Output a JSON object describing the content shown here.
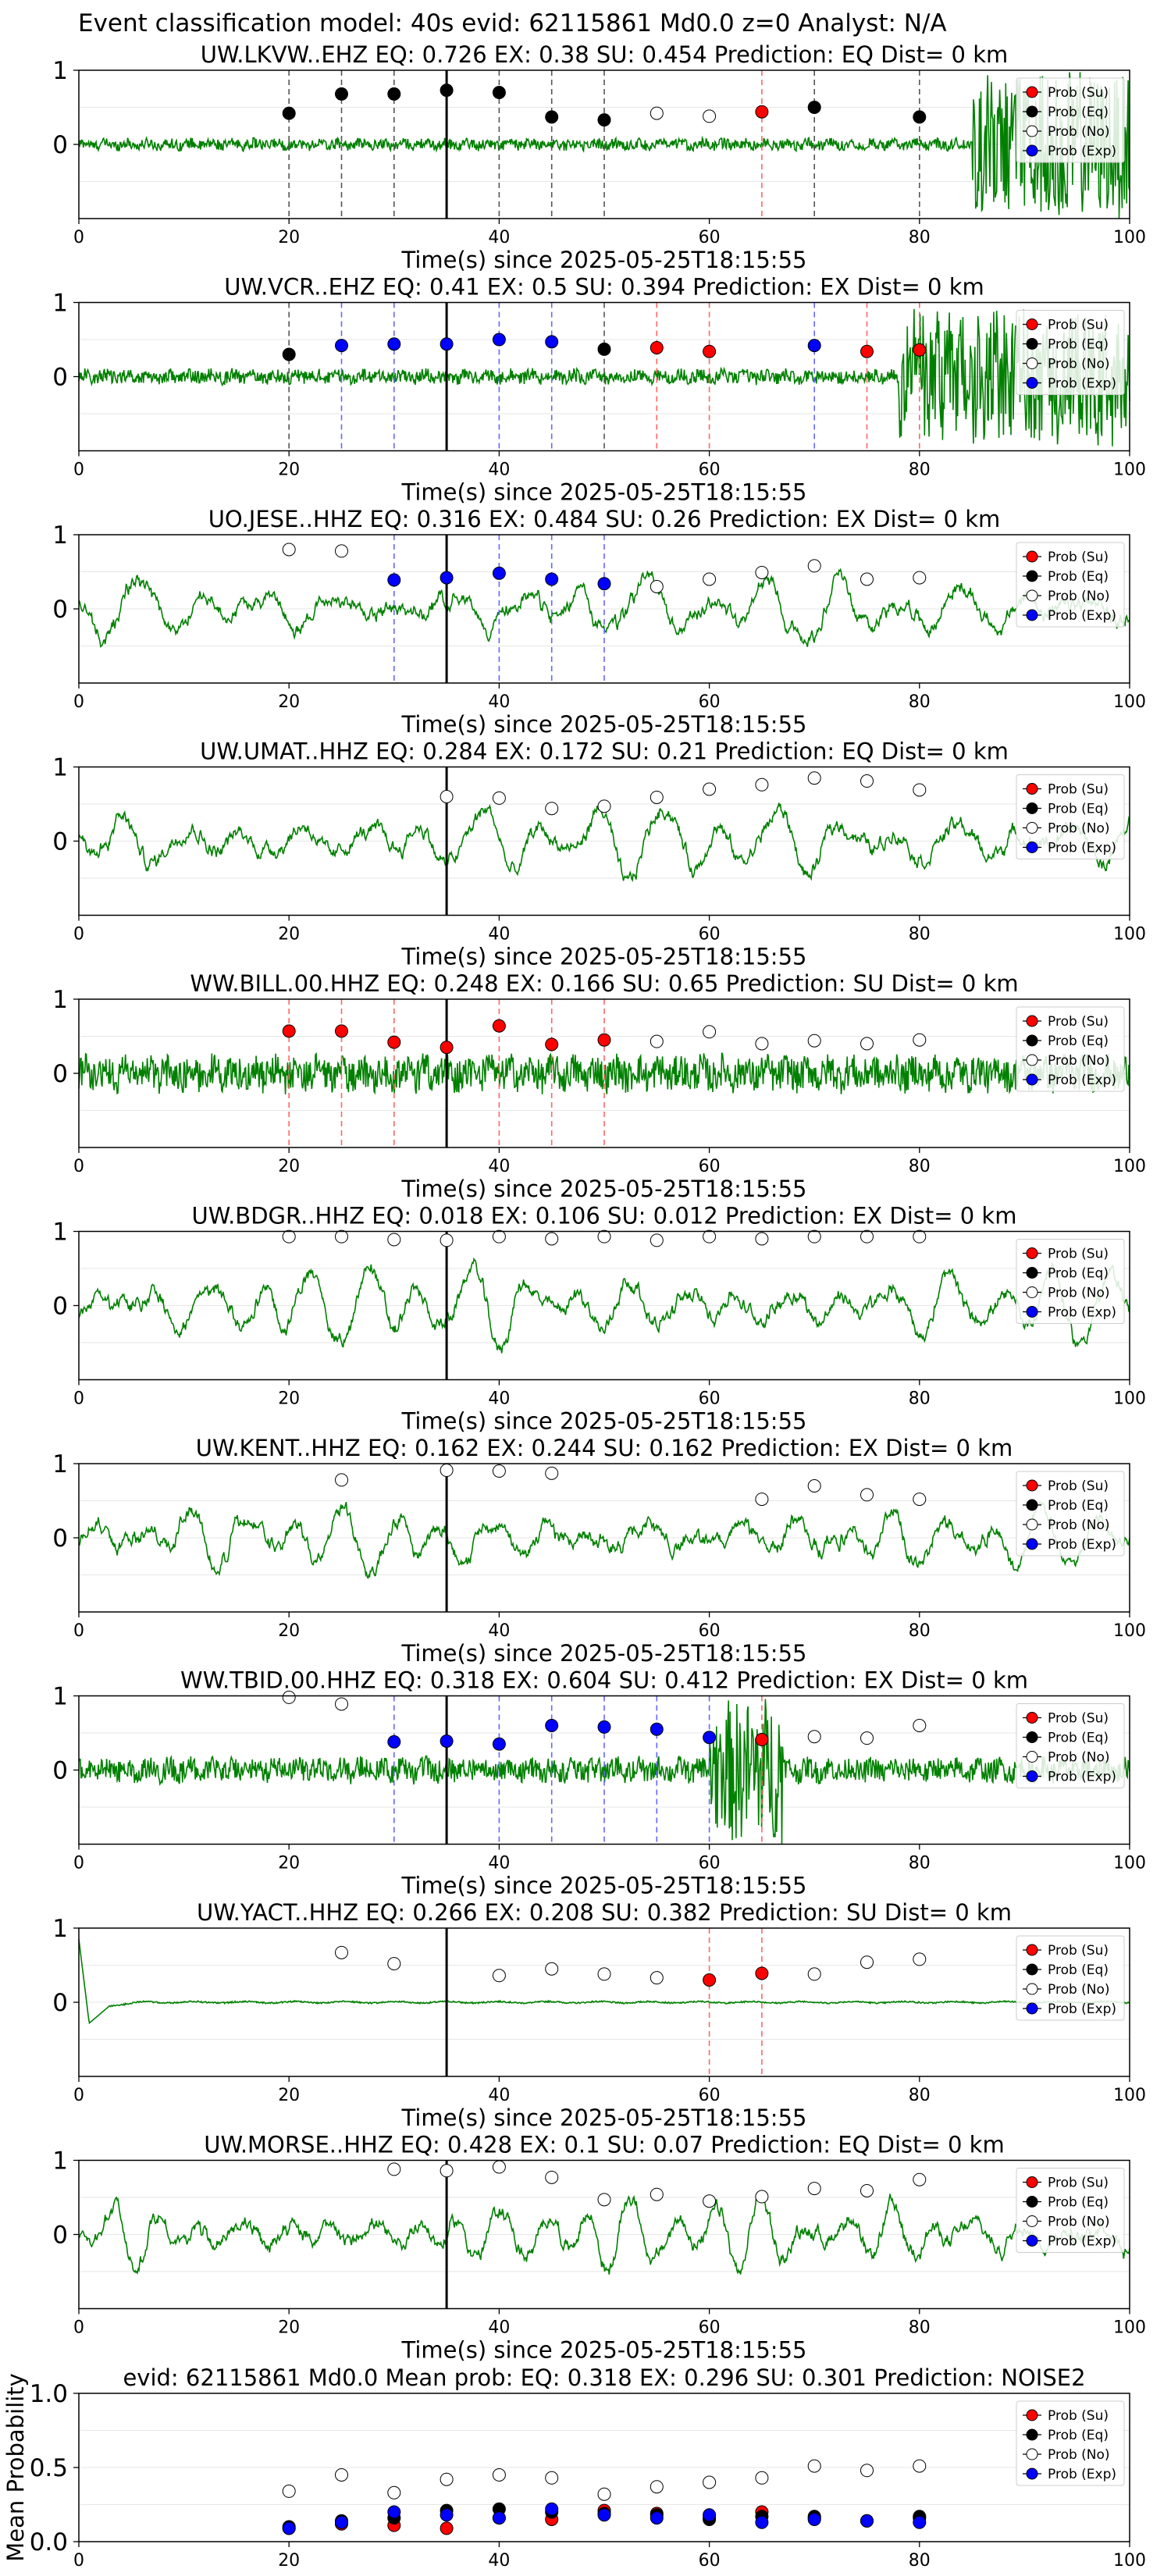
{
  "figure_title": "Event classification model: 40s evid: 62115861 Md0.0 z=0 Analyst: N/A",
  "legend_labels": [
    "Prob (Su)",
    "Prob (Eq)",
    "Prob (No)",
    "Prob (Exp)"
  ],
  "colors": {
    "su": "#ff0000",
    "eq": "#000000",
    "no": "#ffffff",
    "exp": "#0000ff",
    "waveform": "#008000",
    "su_line": "#ff6666",
    "eq_line": "#555555",
    "exp_line": "#6666ff"
  },
  "chart_data": [
    {
      "type": "line",
      "station": "UW.LKVW..EHZ",
      "title": "UW.LKVW..EHZ   EQ: 0.726  EX: 0.38  SU: 0.454   Prediction: EQ    Dist= 0 km",
      "xlabel": "Time(s) since 2025-05-25T18:15:55",
      "xlim": [
        0,
        100
      ],
      "ylim": [
        -1,
        1
      ],
      "xticks": [
        "0",
        "20",
        "40",
        "60",
        "80",
        "100"
      ],
      "yticks": [
        "1",
        "0"
      ],
      "origin_time_line": 35,
      "waveform": {
        "kind": "noisy",
        "amp": 0.07,
        "burst_start": 85,
        "burst_amp": 0.95
      },
      "points": [
        {
          "x": 20,
          "y": 0.42,
          "cls": "eq"
        },
        {
          "x": 25,
          "y": 0.68,
          "cls": "eq"
        },
        {
          "x": 30,
          "y": 0.68,
          "cls": "eq"
        },
        {
          "x": 35,
          "y": 0.73,
          "cls": "eq"
        },
        {
          "x": 40,
          "y": 0.7,
          "cls": "eq"
        },
        {
          "x": 45,
          "y": 0.37,
          "cls": "eq"
        },
        {
          "x": 50,
          "y": 0.33,
          "cls": "eq"
        },
        {
          "x": 55,
          "y": 0.42,
          "cls": "no"
        },
        {
          "x": 60,
          "y": 0.38,
          "cls": "no"
        },
        {
          "x": 65,
          "y": 0.44,
          "cls": "su"
        },
        {
          "x": 70,
          "y": 0.5,
          "cls": "eq"
        },
        {
          "x": 80,
          "y": 0.37,
          "cls": "eq"
        }
      ]
    },
    {
      "type": "line",
      "station": "UW.VCR..EHZ",
      "title": "UW.VCR..EHZ   EQ: 0.41  EX: 0.5  SU: 0.394   Prediction: EX    Dist= 0 km",
      "xlabel": "Time(s) since 2025-05-25T18:15:55",
      "xlim": [
        0,
        100
      ],
      "ylim": [
        -1,
        1
      ],
      "xticks": [
        "0",
        "20",
        "40",
        "60",
        "80",
        "100"
      ],
      "yticks": [
        "1",
        "0"
      ],
      "origin_time_line": 35,
      "waveform": {
        "kind": "noisy",
        "amp": 0.09,
        "burst_start": 78,
        "burst_amp": 0.85
      },
      "points": [
        {
          "x": 20,
          "y": 0.3,
          "cls": "eq"
        },
        {
          "x": 25,
          "y": 0.42,
          "cls": "exp"
        },
        {
          "x": 30,
          "y": 0.44,
          "cls": "exp"
        },
        {
          "x": 35,
          "y": 0.44,
          "cls": "exp"
        },
        {
          "x": 40,
          "y": 0.5,
          "cls": "exp"
        },
        {
          "x": 45,
          "y": 0.47,
          "cls": "exp"
        },
        {
          "x": 50,
          "y": 0.37,
          "cls": "eq"
        },
        {
          "x": 55,
          "y": 0.39,
          "cls": "su"
        },
        {
          "x": 60,
          "y": 0.34,
          "cls": "su"
        },
        {
          "x": 70,
          "y": 0.42,
          "cls": "exp"
        },
        {
          "x": 75,
          "y": 0.34,
          "cls": "su"
        },
        {
          "x": 80,
          "y": 0.36,
          "cls": "su"
        }
      ]
    },
    {
      "type": "line",
      "station": "UO.JESE..HHZ",
      "title": "UO.JESE..HHZ   EQ: 0.316  EX: 0.484  SU: 0.26   Prediction: EX    Dist= 0 km",
      "xlabel": "Time(s) since 2025-05-25T18:15:55",
      "xlim": [
        0,
        100
      ],
      "ylim": [
        -1,
        1
      ],
      "xticks": [
        "0",
        "20",
        "40",
        "60",
        "80",
        "100"
      ],
      "yticks": [
        "1",
        "0"
      ],
      "origin_time_line": 35,
      "waveform": {
        "kind": "wavy",
        "amp": 0.45
      },
      "points": [
        {
          "x": 20,
          "y": 0.8,
          "cls": "no"
        },
        {
          "x": 25,
          "y": 0.78,
          "cls": "no"
        },
        {
          "x": 30,
          "y": 0.39,
          "cls": "exp"
        },
        {
          "x": 35,
          "y": 0.42,
          "cls": "exp"
        },
        {
          "x": 40,
          "y": 0.48,
          "cls": "exp"
        },
        {
          "x": 45,
          "y": 0.4,
          "cls": "exp"
        },
        {
          "x": 50,
          "y": 0.34,
          "cls": "exp"
        },
        {
          "x": 55,
          "y": 0.3,
          "cls": "no"
        },
        {
          "x": 60,
          "y": 0.4,
          "cls": "no"
        },
        {
          "x": 65,
          "y": 0.49,
          "cls": "no"
        },
        {
          "x": 70,
          "y": 0.58,
          "cls": "no"
        },
        {
          "x": 75,
          "y": 0.4,
          "cls": "no"
        },
        {
          "x": 80,
          "y": 0.42,
          "cls": "no"
        }
      ]
    },
    {
      "type": "line",
      "station": "UW.UMAT..HHZ",
      "title": "UW.UMAT..HHZ   EQ: 0.284  EX: 0.172  SU: 0.21   Prediction: EQ    Dist= 0 km",
      "xlabel": "Time(s) since 2025-05-25T18:15:55",
      "xlim": [
        0,
        100
      ],
      "ylim": [
        -1,
        1
      ],
      "xticks": [
        "0",
        "20",
        "40",
        "60",
        "80",
        "100"
      ],
      "yticks": [
        "1",
        "0"
      ],
      "origin_time_line": 35,
      "waveform": {
        "kind": "wavy",
        "amp": 0.55
      },
      "points": [
        {
          "x": 35,
          "y": 0.6,
          "cls": "no"
        },
        {
          "x": 40,
          "y": 0.58,
          "cls": "no"
        },
        {
          "x": 45,
          "y": 0.44,
          "cls": "no"
        },
        {
          "x": 50,
          "y": 0.47,
          "cls": "no"
        },
        {
          "x": 55,
          "y": 0.59,
          "cls": "no"
        },
        {
          "x": 60,
          "y": 0.7,
          "cls": "no"
        },
        {
          "x": 65,
          "y": 0.76,
          "cls": "no"
        },
        {
          "x": 70,
          "y": 0.85,
          "cls": "no"
        },
        {
          "x": 75,
          "y": 0.81,
          "cls": "no"
        },
        {
          "x": 80,
          "y": 0.69,
          "cls": "no"
        }
      ]
    },
    {
      "type": "line",
      "station": "WW.BILL.00.HHZ",
      "title": "WW.BILL.00.HHZ   EQ: 0.248  EX: 0.166  SU: 0.65   Prediction: SU    Dist= 0 km",
      "xlabel": "Time(s) since 2025-05-25T18:15:55",
      "xlim": [
        0,
        100
      ],
      "ylim": [
        -1,
        1
      ],
      "xticks": [
        "0",
        "20",
        "40",
        "60",
        "80",
        "100"
      ],
      "yticks": [
        "1",
        "0"
      ],
      "origin_time_line": 35,
      "waveform": {
        "kind": "noisy",
        "amp": 0.22,
        "burst_start": 101,
        "burst_amp": 0.3
      },
      "points": [
        {
          "x": 20,
          "y": 0.57,
          "cls": "su"
        },
        {
          "x": 25,
          "y": 0.57,
          "cls": "su"
        },
        {
          "x": 30,
          "y": 0.42,
          "cls": "su"
        },
        {
          "x": 35,
          "y": 0.35,
          "cls": "su"
        },
        {
          "x": 40,
          "y": 0.64,
          "cls": "su"
        },
        {
          "x": 45,
          "y": 0.39,
          "cls": "su"
        },
        {
          "x": 50,
          "y": 0.45,
          "cls": "su"
        },
        {
          "x": 55,
          "y": 0.43,
          "cls": "no"
        },
        {
          "x": 60,
          "y": 0.56,
          "cls": "no"
        },
        {
          "x": 65,
          "y": 0.4,
          "cls": "no"
        },
        {
          "x": 70,
          "y": 0.44,
          "cls": "no"
        },
        {
          "x": 75,
          "y": 0.4,
          "cls": "no"
        },
        {
          "x": 80,
          "y": 0.45,
          "cls": "no"
        }
      ]
    },
    {
      "type": "line",
      "station": "UW.BDGR..HHZ",
      "title": "UW.BDGR..HHZ   EQ: 0.018  EX: 0.106  SU: 0.012   Prediction: EX    Dist= 0 km",
      "xlabel": "Time(s) since 2025-05-25T18:15:55",
      "xlim": [
        0,
        100
      ],
      "ylim": [
        -1,
        1
      ],
      "xticks": [
        "0",
        "20",
        "40",
        "60",
        "80",
        "100"
      ],
      "yticks": [
        "1",
        "0"
      ],
      "origin_time_line": 35,
      "waveform": {
        "kind": "wavy",
        "amp": 0.55
      },
      "points": [
        {
          "x": 20,
          "y": 0.93,
          "cls": "no"
        },
        {
          "x": 25,
          "y": 0.93,
          "cls": "no"
        },
        {
          "x": 30,
          "y": 0.89,
          "cls": "no"
        },
        {
          "x": 35,
          "y": 0.88,
          "cls": "no"
        },
        {
          "x": 40,
          "y": 0.93,
          "cls": "no"
        },
        {
          "x": 45,
          "y": 0.9,
          "cls": "no"
        },
        {
          "x": 50,
          "y": 0.93,
          "cls": "no"
        },
        {
          "x": 55,
          "y": 0.88,
          "cls": "no"
        },
        {
          "x": 60,
          "y": 0.93,
          "cls": "no"
        },
        {
          "x": 65,
          "y": 0.9,
          "cls": "no"
        },
        {
          "x": 70,
          "y": 0.93,
          "cls": "no"
        },
        {
          "x": 75,
          "y": 0.93,
          "cls": "no"
        },
        {
          "x": 80,
          "y": 0.93,
          "cls": "no"
        }
      ]
    },
    {
      "type": "line",
      "station": "UW.KENT..HHZ",
      "title": "UW.KENT..HHZ   EQ: 0.162  EX: 0.244  SU: 0.162   Prediction: EX    Dist= 0 km",
      "xlabel": "Time(s) since 2025-05-25T18:15:55",
      "xlim": [
        0,
        100
      ],
      "ylim": [
        -1,
        1
      ],
      "xticks": [
        "0",
        "20",
        "40",
        "60",
        "80",
        "100"
      ],
      "yticks": [
        "1",
        "0"
      ],
      "origin_time_line": 35,
      "waveform": {
        "kind": "wavy",
        "amp": 0.4
      },
      "points": [
        {
          "x": 25,
          "y": 0.78,
          "cls": "no"
        },
        {
          "x": 35,
          "y": 0.91,
          "cls": "no"
        },
        {
          "x": 40,
          "y": 0.9,
          "cls": "no"
        },
        {
          "x": 45,
          "y": 0.87,
          "cls": "no"
        },
        {
          "x": 65,
          "y": 0.52,
          "cls": "no"
        },
        {
          "x": 70,
          "y": 0.7,
          "cls": "no"
        },
        {
          "x": 75,
          "y": 0.58,
          "cls": "no"
        },
        {
          "x": 80,
          "y": 0.52,
          "cls": "no"
        }
      ]
    },
    {
      "type": "line",
      "station": "WW.TBID.00.HHZ",
      "title": "WW.TBID.00.HHZ   EQ: 0.318  EX: 0.604  SU: 0.412   Prediction: EX    Dist= 0 km",
      "xlabel": "Time(s) since 2025-05-25T18:15:55",
      "xlim": [
        0,
        100
      ],
      "ylim": [
        -1,
        1
      ],
      "xticks": [
        "0",
        "20",
        "40",
        "60",
        "80",
        "100"
      ],
      "yticks": [
        "1",
        "0"
      ],
      "origin_time_line": 35,
      "waveform": {
        "kind": "noisy",
        "amp": 0.15,
        "burst_start": 60,
        "burst_end": 67,
        "burst_amp": 0.95
      },
      "points": [
        {
          "x": 20,
          "y": 0.98,
          "cls": "no"
        },
        {
          "x": 25,
          "y": 0.89,
          "cls": "no"
        },
        {
          "x": 30,
          "y": 0.38,
          "cls": "exp"
        },
        {
          "x": 35,
          "y": 0.39,
          "cls": "exp"
        },
        {
          "x": 40,
          "y": 0.35,
          "cls": "exp"
        },
        {
          "x": 45,
          "y": 0.6,
          "cls": "exp"
        },
        {
          "x": 50,
          "y": 0.58,
          "cls": "exp"
        },
        {
          "x": 55,
          "y": 0.55,
          "cls": "exp"
        },
        {
          "x": 60,
          "y": 0.44,
          "cls": "exp"
        },
        {
          "x": 65,
          "y": 0.41,
          "cls": "su"
        },
        {
          "x": 70,
          "y": 0.45,
          "cls": "no"
        },
        {
          "x": 75,
          "y": 0.43,
          "cls": "no"
        },
        {
          "x": 80,
          "y": 0.6,
          "cls": "no"
        }
      ]
    },
    {
      "type": "line",
      "station": "UW.YACT..HHZ",
      "title": "UW.YACT..HHZ   EQ: 0.266  EX: 0.208  SU: 0.382   Prediction: SU    Dist= 0 km",
      "xlabel": "Time(s) since 2025-05-25T18:15:55",
      "xlim": [
        0,
        100
      ],
      "ylim": [
        -1,
        1
      ],
      "xticks": [
        "0",
        "20",
        "40",
        "60",
        "80",
        "100"
      ],
      "yticks": [
        "1",
        "0"
      ],
      "origin_time_line": 35,
      "waveform": {
        "kind": "flat",
        "amp": 0.02
      },
      "points": [
        {
          "x": 25,
          "y": 0.67,
          "cls": "no"
        },
        {
          "x": 30,
          "y": 0.52,
          "cls": "no"
        },
        {
          "x": 40,
          "y": 0.36,
          "cls": "no"
        },
        {
          "x": 45,
          "y": 0.45,
          "cls": "no"
        },
        {
          "x": 50,
          "y": 0.38,
          "cls": "no"
        },
        {
          "x": 55,
          "y": 0.33,
          "cls": "no"
        },
        {
          "x": 60,
          "y": 0.3,
          "cls": "su"
        },
        {
          "x": 65,
          "y": 0.39,
          "cls": "su"
        },
        {
          "x": 70,
          "y": 0.38,
          "cls": "no"
        },
        {
          "x": 75,
          "y": 0.54,
          "cls": "no"
        },
        {
          "x": 80,
          "y": 0.58,
          "cls": "no"
        }
      ]
    },
    {
      "type": "line",
      "station": "UW.MORSE..HHZ",
      "title": "UW.MORSE..HHZ   EQ: 0.428  EX: 0.1  SU: 0.07   Prediction: EQ    Dist= 0 km",
      "xlabel": "Time(s) since 2025-05-25T18:15:55",
      "xlim": [
        0,
        100
      ],
      "ylim": [
        -1,
        1
      ],
      "xticks": [
        "0",
        "20",
        "40",
        "60",
        "80",
        "100"
      ],
      "yticks": [
        "1",
        "0"
      ],
      "origin_time_line": 35,
      "waveform": {
        "kind": "wavy",
        "amp": 0.5
      },
      "points": [
        {
          "x": 30,
          "y": 0.88,
          "cls": "no"
        },
        {
          "x": 35,
          "y": 0.86,
          "cls": "no"
        },
        {
          "x": 40,
          "y": 0.91,
          "cls": "no"
        },
        {
          "x": 45,
          "y": 0.77,
          "cls": "no"
        },
        {
          "x": 50,
          "y": 0.47,
          "cls": "no"
        },
        {
          "x": 55,
          "y": 0.54,
          "cls": "no"
        },
        {
          "x": 60,
          "y": 0.45,
          "cls": "no"
        },
        {
          "x": 65,
          "y": 0.51,
          "cls": "no"
        },
        {
          "x": 70,
          "y": 0.62,
          "cls": "no"
        },
        {
          "x": 75,
          "y": 0.59,
          "cls": "no"
        },
        {
          "x": 80,
          "y": 0.74,
          "cls": "no"
        }
      ]
    },
    {
      "type": "scatter",
      "station": "mean",
      "title": "evid: 62115861  Md0.0   Mean prob:   EQ: 0.318  EX: 0.296  SU: 0.301   Prediction: NOISE2",
      "ylabel": "Mean Probability",
      "xlim": [
        0,
        100
      ],
      "ylim": [
        0,
        1
      ],
      "xticks": [
        "0",
        "20",
        "40",
        "60",
        "80",
        "100"
      ],
      "yticks": [
        "1.0",
        "0.5",
        "0.0"
      ],
      "x": [
        20,
        25,
        30,
        35,
        40,
        45,
        50,
        55,
        60,
        65,
        70,
        75,
        80
      ],
      "series": [
        {
          "cls": "no",
          "values": [
            0.34,
            0.45,
            0.33,
            0.42,
            0.45,
            0.43,
            0.32,
            0.37,
            0.4,
            0.43,
            0.51,
            0.48,
            0.51
          ]
        },
        {
          "cls": "su",
          "values": [
            0.09,
            0.12,
            0.11,
            0.09,
            0.16,
            0.15,
            0.21,
            0.19,
            0.16,
            0.2,
            0.16,
            0.14,
            0.16
          ]
        },
        {
          "cls": "eq",
          "values": [
            0.1,
            0.14,
            0.16,
            0.21,
            0.22,
            0.2,
            0.19,
            0.18,
            0.15,
            0.17,
            0.17,
            0.14,
            0.17
          ]
        },
        {
          "cls": "exp",
          "values": [
            0.09,
            0.13,
            0.2,
            0.18,
            0.16,
            0.22,
            0.18,
            0.16,
            0.18,
            0.13,
            0.15,
            0.14,
            0.13
          ]
        }
      ]
    }
  ]
}
